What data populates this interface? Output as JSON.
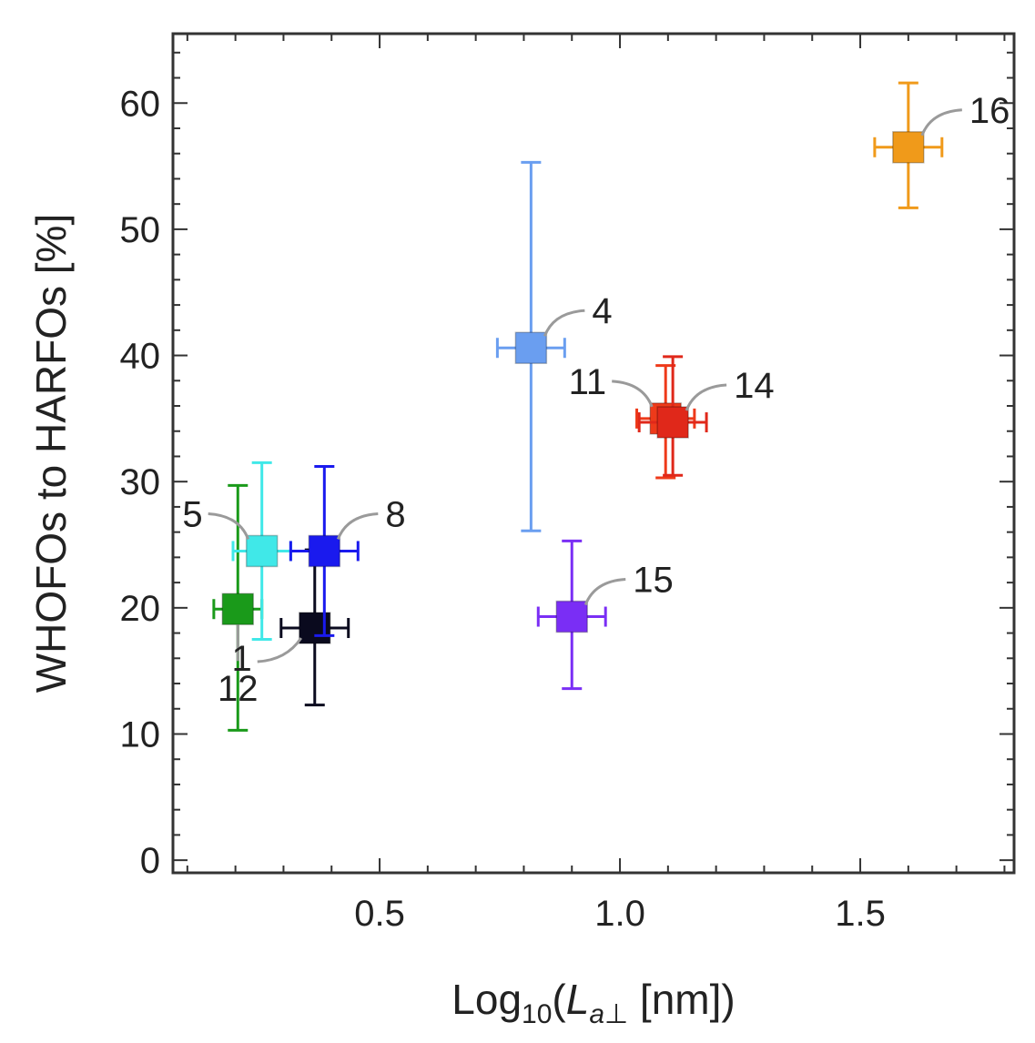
{
  "chart_data": {
    "type": "scatter",
    "title": "",
    "xlabel": {
      "prefix": "Log",
      "sub": "10",
      "open": "(",
      "var": "L",
      "var_sub": "a⊥",
      "unit": " [nm])"
    },
    "ylabel": "WHOFOs to HARFOs [%]",
    "xlim": [
      0.07,
      1.82
    ],
    "ylim": [
      -1,
      65.5
    ],
    "x_ticks": [
      {
        "value": 0.5,
        "label": "0.5"
      },
      {
        "value": 1.0,
        "label": "1.0"
      },
      {
        "value": 1.5,
        "label": "1.5"
      }
    ],
    "y_ticks": [
      {
        "value": 0,
        "label": "0"
      },
      {
        "value": 10,
        "label": "10"
      },
      {
        "value": 20,
        "label": "20"
      },
      {
        "value": 30,
        "label": "30"
      },
      {
        "value": 40,
        "label": "40"
      },
      {
        "value": 50,
        "label": "50"
      },
      {
        "value": 60,
        "label": "60"
      }
    ],
    "points": [
      {
        "label": "12",
        "x": 0.205,
        "y": 19.9,
        "xerr": 0.05,
        "ylo": 10.3,
        "yhi": 29.7,
        "color": "#1a9a1a",
        "label_pos": "below"
      },
      {
        "label": "5",
        "x": 0.255,
        "y": 24.5,
        "xerr": 0.06,
        "ylo": 17.5,
        "yhi": 31.5,
        "color": "#40e8e8",
        "label_pos": "left"
      },
      {
        "label": "1",
        "x": 0.365,
        "y": 18.4,
        "xerr": 0.07,
        "ylo": 12.3,
        "yhi": 24.6,
        "color": "#0a0a1e",
        "label_pos": "below-left"
      },
      {
        "label": "8",
        "x": 0.385,
        "y": 24.5,
        "xerr": 0.07,
        "ylo": 17.8,
        "yhi": 31.2,
        "color": "#1a1aee",
        "label_pos": "right"
      },
      {
        "label": "4",
        "x": 0.815,
        "y": 40.6,
        "xerr": 0.07,
        "ylo": 26.1,
        "yhi": 55.3,
        "color": "#6a9ef0",
        "label_pos": "right"
      },
      {
        "label": "15",
        "x": 0.9,
        "y": 19.3,
        "xerr": 0.07,
        "ylo": 13.6,
        "yhi": 25.3,
        "color": "#7a2ef5",
        "label_pos": "right"
      },
      {
        "label": "11",
        "x": 1.095,
        "y": 35.0,
        "xerr": 0.06,
        "ylo": 30.3,
        "yhi": 39.2,
        "color": "#ee3a1a",
        "label_pos": "left"
      },
      {
        "label": "14",
        "x": 1.11,
        "y": 34.7,
        "xerr": 0.07,
        "ylo": 30.5,
        "yhi": 39.9,
        "color": "#e0281a",
        "label_pos": "right"
      },
      {
        "label": "16",
        "x": 1.6,
        "y": 56.5,
        "xerr": 0.07,
        "ylo": 51.7,
        "yhi": 61.6,
        "color": "#f09a1a",
        "label_pos": "right"
      }
    ]
  }
}
